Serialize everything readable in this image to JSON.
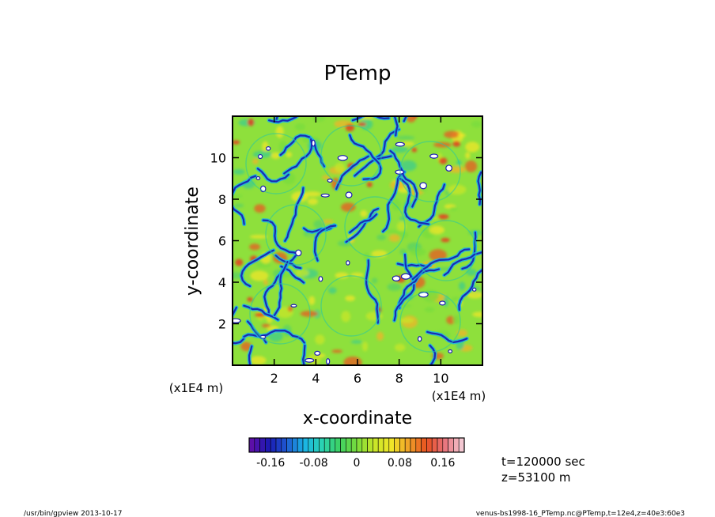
{
  "chart_data": {
    "type": "heatmap",
    "title": "PTemp",
    "xlabel": "x-coordinate",
    "ylabel": "y-coordinate",
    "x_unit_label": "(x1E4 m)",
    "y_unit_label": "(x1E4 m)",
    "xlim": [
      0,
      12
    ],
    "ylim": [
      0,
      12
    ],
    "xticks": [
      "2",
      "4",
      "6",
      "8",
      "10"
    ],
    "yticks": [
      "2",
      "4",
      "6",
      "8",
      "10"
    ],
    "xtick_values": [
      2,
      4,
      6,
      8,
      10
    ],
    "ytick_values": [
      2,
      4,
      6,
      8,
      10
    ],
    "colorbar": {
      "min": -0.2,
      "max": 0.2,
      "levels": 40,
      "tick_labels": [
        "-0.16",
        "-0.08",
        "0",
        "0.08",
        "0.16"
      ],
      "tick_values": [
        -0.16,
        -0.08,
        0,
        0.08,
        0.16
      ],
      "palette": [
        "#5c0fa8",
        "#1a1ab4",
        "#1f5ad2",
        "#1ab4e6",
        "#2ad2b4",
        "#3cd264",
        "#78dc3c",
        "#c8e628",
        "#f0e628",
        "#f0a028",
        "#e85020",
        "#e87078",
        "#f4c8d2"
      ]
    },
    "grid": false
  },
  "annotations": {
    "time": "t=120000 sec",
    "height": "z=53100 m"
  },
  "footer": {
    "left": "/usr/bin/gpview   2013-10-17",
    "right": "venus-bs1998-16_PTemp.nc@PTemp,t=12e4,z=40e3:60e3"
  }
}
